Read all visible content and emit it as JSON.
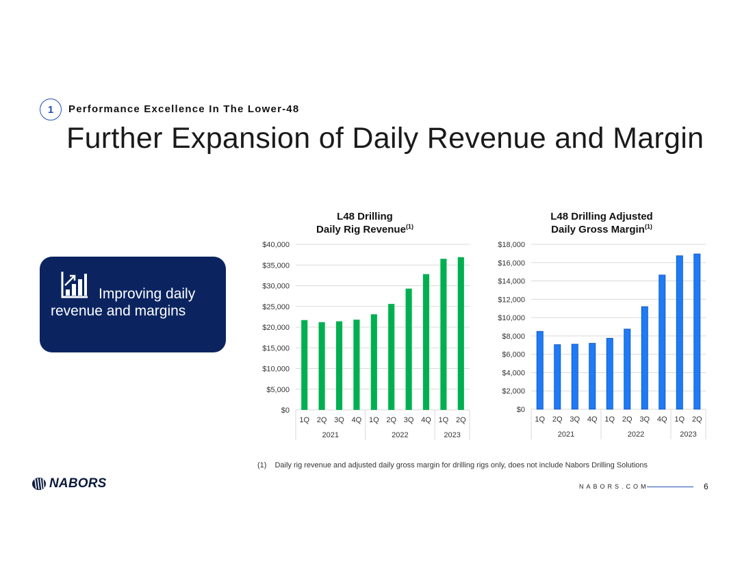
{
  "header": {
    "section_number": "1",
    "section_title": "Performance Excellence In The Lower-48",
    "title": "Further Expansion of Daily Revenue and Margin"
  },
  "callout": {
    "icon": "bar-chart-growth-icon",
    "line1": "Improving daily",
    "line2": "revenue and margins",
    "bg_color": "#0b2460"
  },
  "chart_data": [
    {
      "type": "bar",
      "title_line1": "L48 Drilling",
      "title_line2": "Daily Rig Revenue",
      "title_sup": "(1)",
      "categories": [
        "1Q",
        "2Q",
        "3Q",
        "4Q",
        "1Q",
        "2Q",
        "3Q",
        "4Q",
        "1Q",
        "2Q"
      ],
      "groups": [
        {
          "label": "2021",
          "count": 4
        },
        {
          "label": "2022",
          "count": 4
        },
        {
          "label": "2023",
          "count": 2
        }
      ],
      "values": [
        21700,
        21200,
        21400,
        21800,
        23100,
        25600,
        29300,
        32800,
        36500,
        36900
      ],
      "ylim": [
        0,
        40000
      ],
      "ytick_step": 5000,
      "ytick_labels": [
        "$0",
        "$5,000",
        "$10,000",
        "$15,000",
        "$20,000",
        "$25,000",
        "$30,000",
        "$35,000",
        "$40,000"
      ],
      "color": "#00b050",
      "grid": true
    },
    {
      "type": "bar",
      "title_line1": "L48 Drilling Adjusted",
      "title_line2": "Daily Gross Margin",
      "title_sup": "(1)",
      "categories": [
        "1Q",
        "2Q",
        "3Q",
        "4Q",
        "1Q",
        "2Q",
        "3Q",
        "4Q",
        "1Q",
        "2Q"
      ],
      "groups": [
        {
          "label": "2021",
          "count": 4
        },
        {
          "label": "2022",
          "count": 4
        },
        {
          "label": "2023",
          "count": 2
        }
      ],
      "values": [
        8500,
        7050,
        7100,
        7200,
        7750,
        8750,
        11200,
        14650,
        16750,
        16950
      ],
      "ylim": [
        0,
        18000
      ],
      "ytick_step": 2000,
      "ytick_labels": [
        "$0",
        "$2,000",
        "$4,000",
        "$6,000",
        "$8,000",
        "$10,000",
        "$12,000",
        "$14,000",
        "$16,000",
        "$18,000"
      ],
      "color": "#1e7bf5",
      "grid": true
    }
  ],
  "footnote": {
    "number": "(1)",
    "text": "Daily rig revenue and adjusted daily gross margin for drilling rigs only, does not include Nabors Drilling Solutions"
  },
  "footer": {
    "logo_text": "NABORS",
    "logo_icon": "nabors-logo-icon",
    "site": "NABORS.COM",
    "page_number": "6"
  }
}
